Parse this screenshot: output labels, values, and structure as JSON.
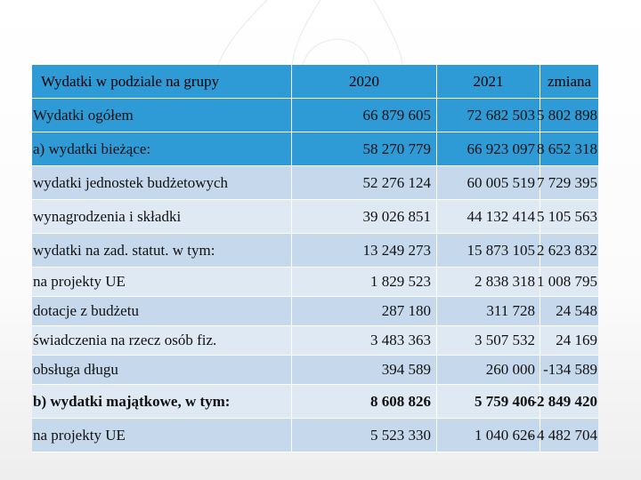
{
  "table": {
    "headers": [
      "Wydatki w podziale na grupy",
      "2020",
      "2021",
      "zmiana"
    ],
    "rows": [
      {
        "label": "Wydatki ogółem",
        "v2020": "66 879 605",
        "v2021": "72 682 503",
        "change": "5 802 898"
      },
      {
        "label": "a) wydatki bieżące:",
        "v2020": "58 270 779",
        "v2021": "66 923 097",
        "change": "8 652 318"
      },
      {
        "label": "wydatki jednostek budżetowych",
        "v2020": "52 276 124",
        "v2021": "60 005 519",
        "change": "7 729 395"
      },
      {
        "label": "wynagrodzenia i składki",
        "v2020": "39 026 851",
        "v2021": "44 132 414",
        "change": "5 105 563"
      },
      {
        "label": "wydatki na zad. statut. w tym:",
        "v2020": "13 249 273",
        "v2021": "15 873 105",
        "change": "2 623 832"
      },
      {
        "label": "na projekty UE",
        "v2020": "1 829 523",
        "v2021": "2 838 318",
        "change": "1 008 795"
      },
      {
        "label": "dotacje z budżetu",
        "v2020": "287 180",
        "v2021": "311 728",
        "change": "24 548"
      },
      {
        "label": "świadczenia na rzecz osób fiz.",
        "v2020": "3 483 363",
        "v2021": "3 507 532",
        "change": "24 169"
      },
      {
        "label": "obsługa długu",
        "v2020": "394 589",
        "v2021": "260 000",
        "change": "-134 589"
      },
      {
        "label": "b) wydatki majątkowe, w tym:",
        "v2020": "8 608 826",
        "v2021": "5 759 406",
        "change": "-2 849 420"
      },
      {
        "label": "na projekty UE",
        "v2020": "5 523 330",
        "v2021": "1 040 626",
        "change": "- 4 482 704"
      }
    ]
  },
  "colors": {
    "header": "#2e9bd7",
    "mid_row": "#c6d9ec",
    "light_row": "#dfe9f4"
  }
}
